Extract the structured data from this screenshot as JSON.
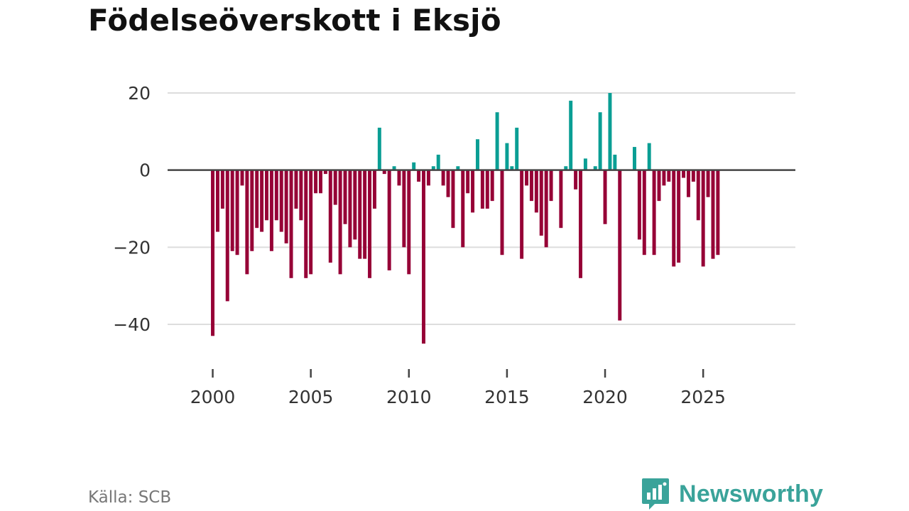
{
  "title": "Födelseöverskott i Eksjö",
  "source": "Källa: SCB",
  "brand": {
    "name": "Newsworthy",
    "logo_icon": "bar-chart-speech-bubble-icon"
  },
  "colors": {
    "positive": "#0a9e94",
    "negative": "#960036",
    "grid": "#dddddd",
    "zero_line": "#444444",
    "text": "#333333"
  },
  "chart_data": {
    "type": "bar",
    "title": "Födelseöverskott i Eksjö",
    "xlabel": "",
    "ylabel": "",
    "x_ticks": [
      2000,
      2005,
      2010,
      2015,
      2020,
      2025
    ],
    "y_ticks": [
      20,
      0,
      -20,
      -40
    ],
    "y_tick_labels": [
      "20",
      "0",
      "−20",
      "−40"
    ],
    "x_tick_labels": [
      "2000",
      "2005",
      "2010",
      "2015",
      "2020",
      "2025"
    ],
    "xlim": [
      1997.7,
      2029.7
    ],
    "ylim": [
      -50,
      28
    ],
    "bar_unit": "quarter",
    "start_year": 2000,
    "values": [
      -43,
      -16,
      -10,
      -34,
      -21,
      -22,
      -4,
      -27,
      -21,
      -15,
      -16,
      -13,
      -21,
      -13,
      -16,
      -19,
      -28,
      -10,
      -13,
      -28,
      -27,
      -6,
      -6,
      -1,
      -24,
      -9,
      -27,
      -14,
      -20,
      -18,
      -23,
      -23,
      -28,
      -10,
      11,
      -1,
      -26,
      1,
      -4,
      -20,
      -27,
      2,
      -3,
      -45,
      -4,
      1,
      4,
      -4,
      -7,
      -15,
      1,
      -20,
      -6,
      -11,
      8,
      -10,
      -10,
      -8,
      15,
      -22,
      7,
      1,
      11,
      -23,
      -4,
      -8,
      -11,
      -17,
      -20,
      -8,
      0,
      -15,
      1,
      18,
      -5,
      -28,
      3,
      0,
      1,
      15,
      -14,
      20,
      4,
      -39,
      0,
      0,
      6,
      -18,
      -22,
      7,
      -22,
      -8,
      -4,
      -3,
      -25,
      -24,
      -2,
      -7,
      -3,
      -13,
      -25,
      -7,
      -23,
      -22
    ]
  }
}
